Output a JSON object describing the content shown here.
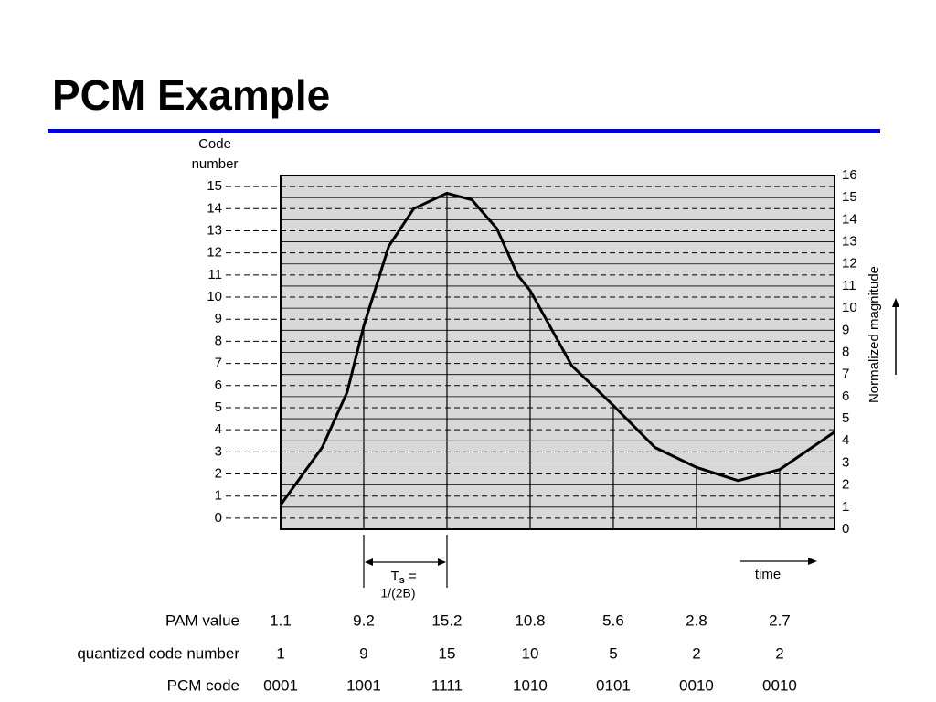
{
  "slide": {
    "title": "PCM Example"
  },
  "chart_data": {
    "type": "line",
    "x": [
      0,
      0.5,
      0.8,
      1,
      1.3,
      1.6,
      2,
      2.3,
      2.6,
      2.85,
      3,
      3.5,
      4,
      4.5,
      5,
      5.5,
      6,
      6.66
    ],
    "values": [
      1.1,
      3.7,
      6.2,
      9.2,
      12.8,
      14.5,
      15.2,
      14.9,
      13.6,
      11.5,
      10.8,
      7.4,
      5.6,
      3.7,
      2.8,
      2.2,
      2.7,
      4.4
    ],
    "color": "#000000",
    "xlim": [
      0,
      6.66
    ],
    "ylim": [
      0,
      16
    ],
    "yticks": [
      0,
      1,
      2,
      3,
      4,
      5,
      6,
      7,
      8,
      9,
      10,
      11,
      12,
      13,
      14,
      15,
      16
    ],
    "ylabel": "Normalized magnitude",
    "y2lim": [
      -0.5,
      15.5
    ],
    "y2ticks": [
      0,
      1,
      2,
      3,
      4,
      5,
      6,
      7,
      8,
      9,
      10,
      11,
      12,
      13,
      14,
      15
    ],
    "y2label": [
      "Code",
      "number"
    ],
    "grid": true,
    "samples": {
      "x": [
        0,
        1,
        2,
        3,
        4,
        5,
        6
      ],
      "values": [
        1.1,
        9.2,
        15.2,
        10.8,
        5.6,
        2.8,
        2.7
      ]
    },
    "period_label": {
      "main": "T",
      "sub": "s",
      "eq": " =",
      "line2": "1/(2B)"
    },
    "time_label": "time",
    "table": {
      "row_labels": [
        "PAM value",
        "quantized code number",
        "PCM code"
      ],
      "codes": [
        1,
        9,
        15,
        10,
        5,
        2,
        2
      ],
      "pcm": [
        "0001",
        "1001",
        "1111",
        "1010",
        "0101",
        "0010",
        "0010"
      ]
    }
  }
}
